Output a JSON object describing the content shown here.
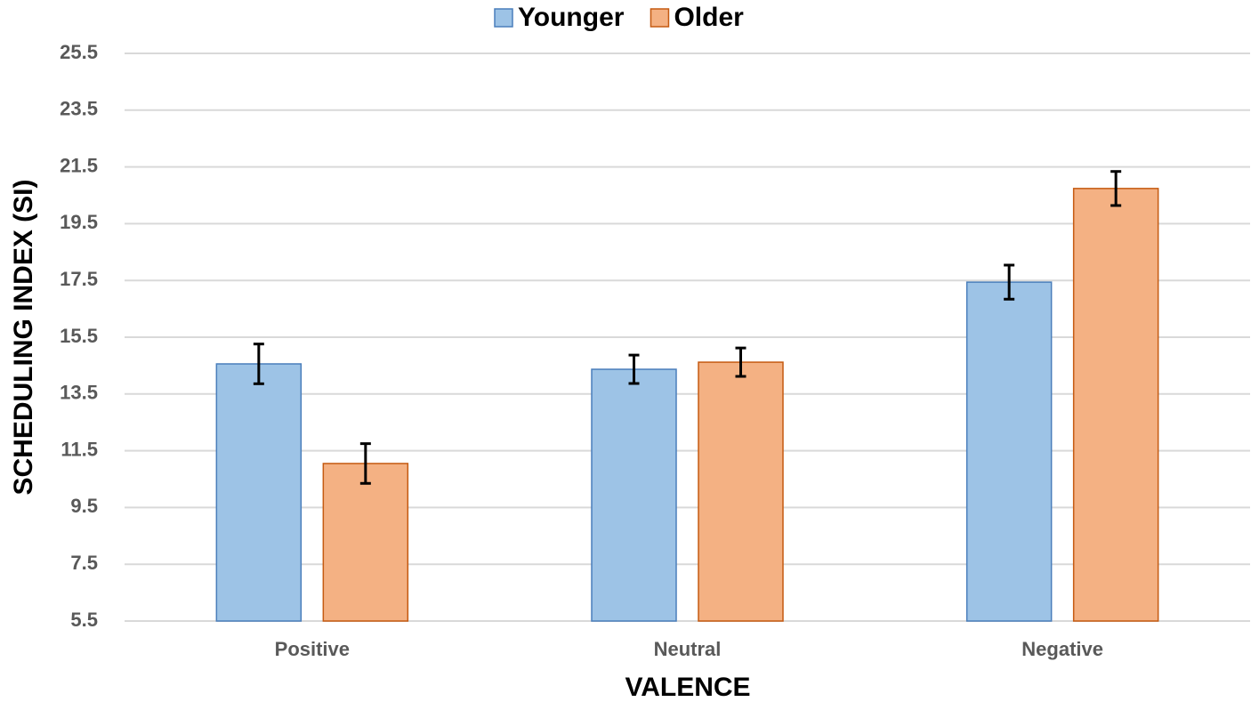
{
  "chart_data": {
    "type": "bar",
    "x_label": "VALENCE",
    "y_label": "SCHEDULING INDEX (SI)",
    "categories": [
      "Positive",
      "Neutral",
      "Negative"
    ],
    "series": [
      {
        "name": "Younger",
        "color": "#9dc3e6",
        "edge": "#4a7ebb",
        "values": [
          14.56,
          14.37,
          17.44
        ],
        "errors": [
          0.7,
          0.5,
          0.6
        ]
      },
      {
        "name": "Older",
        "color": "#f4b183",
        "edge": "#c55a11",
        "values": [
          11.05,
          14.62,
          20.74
        ],
        "errors": [
          0.7,
          0.5,
          0.6
        ]
      }
    ],
    "ylim": [
      5.5,
      25.5
    ],
    "yticks": [
      5.5,
      7.5,
      9.5,
      11.5,
      13.5,
      15.5,
      17.5,
      19.5,
      21.5,
      23.5,
      25.5
    ],
    "grid": true
  }
}
